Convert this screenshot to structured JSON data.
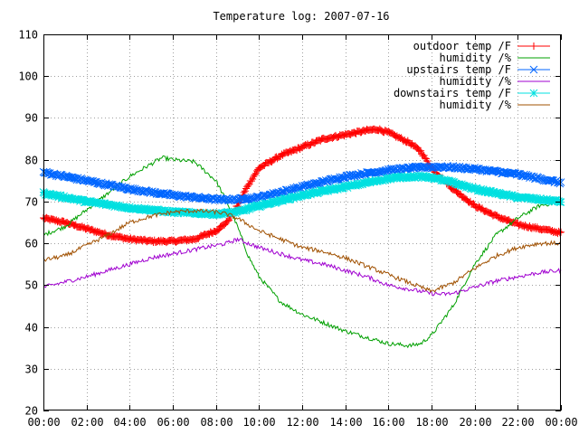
{
  "chart_data": {
    "type": "line",
    "title": "Temperature log: 2007-07-16",
    "xlabel": "",
    "ylabel": "",
    "xlim": [
      0,
      24
    ],
    "ylim": [
      20,
      110
    ],
    "x_ticks": [
      "00:00",
      "02:00",
      "04:00",
      "06:00",
      "08:00",
      "10:00",
      "12:00",
      "14:00",
      "16:00",
      "18:00",
      "20:00",
      "22:00",
      "00:00"
    ],
    "y_ticks": [
      20,
      30,
      40,
      50,
      60,
      70,
      80,
      90,
      100,
      110
    ],
    "grid": true,
    "legend_position": "top-right",
    "series": [
      {
        "name": "outdoor temp /F",
        "color": "#ff0000",
        "marker": "plus",
        "thick": true,
        "x": [
          0,
          1,
          2,
          3,
          4,
          5,
          6,
          7,
          8,
          8.5,
          9,
          9.5,
          10,
          10.5,
          11,
          12,
          13,
          14,
          15,
          15.5,
          16,
          17,
          17.5,
          18,
          19,
          20,
          21,
          22,
          23,
          24
        ],
        "y": [
          66,
          65,
          63.5,
          62,
          61,
          60.5,
          60.5,
          61,
          63,
          65,
          69,
          74,
          78,
          79.5,
          81,
          83,
          85,
          86,
          87,
          87.3,
          86.5,
          84,
          82,
          78,
          73,
          69,
          66.5,
          64.5,
          63.5,
          62.5
        ]
      },
      {
        "name": "humidity /%",
        "color": "#00a000",
        "marker": "none",
        "thick": false,
        "x": [
          0,
          1,
          2,
          3,
          4,
          5,
          5.5,
          6,
          7,
          8,
          8.5,
          9,
          9.5,
          10,
          10.5,
          11,
          12,
          13,
          14,
          15,
          16,
          17,
          17.5,
          18,
          19,
          20,
          21,
          22,
          23,
          24
        ],
        "y": [
          62,
          64,
          68,
          72,
          76,
          79,
          80.5,
          80,
          79.5,
          75,
          70,
          64,
          57,
          52,
          49,
          46,
          43,
          41,
          39,
          37.5,
          36,
          35.5,
          36,
          38,
          45,
          55,
          62,
          66,
          69,
          70
        ]
      },
      {
        "name": "upstairs temp /F",
        "color": "#0066ff",
        "marker": "x",
        "thick": true,
        "x": [
          0,
          2,
          4,
          6,
          8,
          9,
          10,
          12,
          14,
          16,
          17,
          18,
          19,
          20,
          22,
          24
        ],
        "y": [
          77,
          75,
          73,
          71.5,
          70.5,
          70.5,
          71,
          73.5,
          76,
          77.5,
          78,
          78.3,
          78.2,
          77.8,
          76.5,
          74.5
        ]
      },
      {
        "name": "humidity /%",
        "color": "#a000d0",
        "marker": "none",
        "thick": false,
        "x": [
          0,
          2,
          4,
          5,
          6,
          7,
          8,
          8.5,
          9,
          9.5,
          10,
          11,
          12,
          13,
          14,
          15,
          16,
          17,
          18,
          18.5,
          19,
          20,
          21,
          22,
          23,
          24
        ],
        "y": [
          49.5,
          52,
          55,
          56.5,
          57.5,
          58.5,
          59.5,
          60,
          61,
          60,
          59,
          57.5,
          56,
          55,
          53.5,
          52,
          50,
          49,
          48,
          47.8,
          48,
          49.5,
          51,
          52,
          53,
          53.5
        ]
      },
      {
        "name": "downstairs temp /F",
        "color": "#00e0e0",
        "marker": "star",
        "thick": true,
        "x": [
          0,
          2,
          4,
          6,
          8,
          9,
          10,
          12,
          14,
          16,
          17,
          18,
          19,
          20,
          22,
          24
        ],
        "y": [
          72,
          70,
          68.5,
          67.5,
          67,
          67.5,
          69,
          71.5,
          73.5,
          75.5,
          76,
          75.8,
          74.5,
          73,
          71,
          70
        ]
      },
      {
        "name": "humidity /%",
        "color": "#a05000",
        "marker": "none",
        "thick": false,
        "x": [
          0,
          1,
          2,
          3,
          4,
          5,
          6,
          7,
          8,
          8.5,
          9,
          9.5,
          10,
          11,
          12,
          13,
          14,
          15,
          16,
          17,
          18,
          19,
          20,
          21,
          22,
          23,
          24
        ],
        "y": [
          56,
          57,
          59.5,
          62,
          65,
          66.5,
          67.5,
          67.8,
          67.5,
          67,
          66,
          64.5,
          63,
          61,
          59,
          58,
          56.5,
          54.5,
          52.5,
          50.5,
          48.5,
          50.5,
          54,
          57,
          59,
          60,
          60
        ]
      }
    ]
  }
}
